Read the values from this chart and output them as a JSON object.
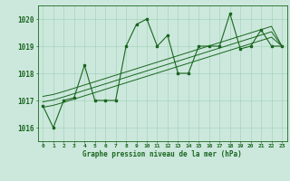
{
  "title": "Graphe pression niveau de la mer (hPa)",
  "x_labels": [
    "0",
    "1",
    "2",
    "3",
    "4",
    "5",
    "6",
    "7",
    "8",
    "9",
    "10",
    "11",
    "12",
    "13",
    "14",
    "15",
    "16",
    "17",
    "18",
    "19",
    "20",
    "21",
    "22",
    "23"
  ],
  "xlim": [
    -0.5,
    23.5
  ],
  "ylim": [
    1015.5,
    1020.5
  ],
  "yticks": [
    1016,
    1017,
    1018,
    1019,
    1020
  ],
  "background_color": "#cce8dc",
  "grid_color": "#9ecfb8",
  "line_color": "#1a6620",
  "main_data": [
    1016.8,
    1016.0,
    1017.0,
    1017.1,
    1018.3,
    1017.0,
    1017.0,
    1017.0,
    1019.0,
    1019.8,
    1020.0,
    1019.0,
    1019.4,
    1018.0,
    1018.0,
    1019.0,
    1019.0,
    1019.0,
    1020.2,
    1018.9,
    1019.0,
    1019.6,
    1019.0,
    1019.0
  ],
  "trend1": [
    1016.75,
    1016.82,
    1016.93,
    1017.05,
    1017.17,
    1017.29,
    1017.41,
    1017.53,
    1017.65,
    1017.77,
    1017.89,
    1018.01,
    1018.13,
    1018.25,
    1018.37,
    1018.49,
    1018.61,
    1018.73,
    1018.85,
    1018.97,
    1019.09,
    1019.21,
    1019.33,
    1019.0
  ],
  "trend2": [
    1016.95,
    1017.02,
    1017.13,
    1017.25,
    1017.37,
    1017.49,
    1017.61,
    1017.73,
    1017.85,
    1017.97,
    1018.09,
    1018.21,
    1018.33,
    1018.45,
    1018.57,
    1018.69,
    1018.81,
    1018.93,
    1019.05,
    1019.17,
    1019.29,
    1019.41,
    1019.53,
    1019.0
  ],
  "trend3": [
    1017.15,
    1017.22,
    1017.33,
    1017.45,
    1017.57,
    1017.69,
    1017.81,
    1017.93,
    1018.05,
    1018.17,
    1018.29,
    1018.41,
    1018.53,
    1018.65,
    1018.77,
    1018.89,
    1019.01,
    1019.13,
    1019.25,
    1019.37,
    1019.49,
    1019.61,
    1019.73,
    1019.0
  ],
  "figsize": [
    3.2,
    2.0
  ],
  "dpi": 100
}
